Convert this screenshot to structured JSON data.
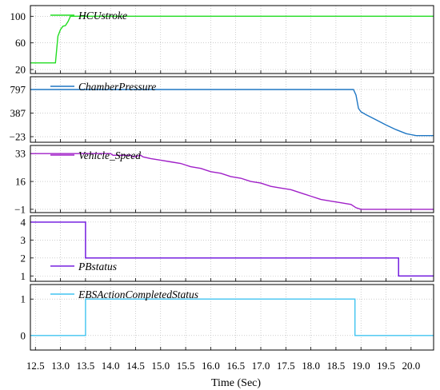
{
  "chart_data": {
    "type": "line",
    "xlabel": "Time (Sec)",
    "xlim": [
      12.4,
      20.45
    ],
    "x_ticks": [
      12.5,
      13.0,
      13.5,
      14.0,
      14.5,
      15.0,
      15.5,
      16.0,
      16.5,
      17.0,
      17.5,
      18.0,
      18.5,
      19.0,
      19.5,
      20.0
    ],
    "x_tick_labels": [
      "12.5",
      "13.0",
      "13.5",
      "14.0",
      "14.5",
      "15.0",
      "15.5",
      "16.0",
      "16.5",
      "17.0",
      "17.5",
      "18.0",
      "18.5",
      "19.0",
      "19.5",
      "20.0"
    ],
    "panels": [
      {
        "legend": "HCUstroke",
        "color": "#22dd22",
        "ylim": [
          14,
          116
        ],
        "y_ticks": [
          20,
          60,
          100
        ],
        "y_tick_labels": [
          "20",
          "60",
          "100"
        ],
        "x": [
          12.4,
          12.9,
          12.95,
          13.0,
          13.05,
          13.1,
          13.15,
          13.2,
          20.45
        ],
        "y": [
          30,
          30,
          70,
          80,
          85,
          86,
          92,
          100,
          100
        ]
      },
      {
        "legend": "ChamberPressure",
        "color": "#1f77c4",
        "ylim": [
          -120,
          1020
        ],
        "y_ticks": [
          -23,
          387,
          797
        ],
        "y_tick_labels": [
          "−23",
          "387",
          "797"
        ],
        "x": [
          12.4,
          18.85,
          18.9,
          18.95,
          19.0,
          19.1,
          19.3,
          19.5,
          19.7,
          19.9,
          20.1,
          20.45
        ],
        "y": [
          797,
          797,
          700,
          470,
          410,
          360,
          270,
          180,
          100,
          30,
          -5,
          -5
        ]
      },
      {
        "legend": "Vehicle_Speed",
        "color": "#a020c8",
        "ylim": [
          -3,
          38
        ],
        "y_ticks": [
          -1,
          16,
          33
        ],
        "y_tick_labels": [
          "−1",
          "16",
          "33"
        ],
        "x": [
          12.4,
          14.0,
          14.05,
          14.4,
          14.45,
          14.6,
          14.65,
          14.8,
          15.0,
          15.2,
          15.4,
          15.6,
          15.8,
          16.0,
          16.2,
          16.4,
          16.6,
          16.8,
          17.0,
          17.2,
          17.4,
          17.6,
          17.8,
          18.0,
          18.2,
          18.4,
          18.6,
          18.8,
          18.9,
          19.0,
          19.2,
          20.45
        ],
        "y": [
          33,
          33,
          32,
          32,
          31,
          32,
          31,
          30,
          29,
          28,
          27,
          25,
          24,
          22,
          21,
          19,
          18,
          16,
          15,
          13,
          12,
          11,
          9,
          7,
          5,
          4,
          3,
          2,
          0,
          -1,
          -1,
          -1
        ]
      },
      {
        "legend": "PBstatus",
        "color": "#6a0ddd",
        "ylim": [
          0.7,
          4.35
        ],
        "y_ticks": [
          1,
          2,
          3,
          4
        ],
        "y_tick_labels": [
          "1",
          "2",
          "3",
          "4"
        ],
        "x": [
          12.4,
          13.5,
          13.5,
          19.75,
          19.75,
          20.45
        ],
        "y": [
          4,
          4,
          2,
          2,
          1,
          1
        ]
      },
      {
        "legend": "EBSActionCompletedStatus",
        "color": "#40c4f0",
        "ylim": [
          -0.4,
          1.4
        ],
        "y_ticks": [
          0,
          1
        ],
        "y_tick_labels": [
          "0",
          "1"
        ],
        "x": [
          12.4,
          13.5,
          13.5,
          18.88,
          18.88,
          20.45
        ],
        "y": [
          0,
          0,
          1,
          1,
          0,
          0
        ]
      }
    ]
  }
}
